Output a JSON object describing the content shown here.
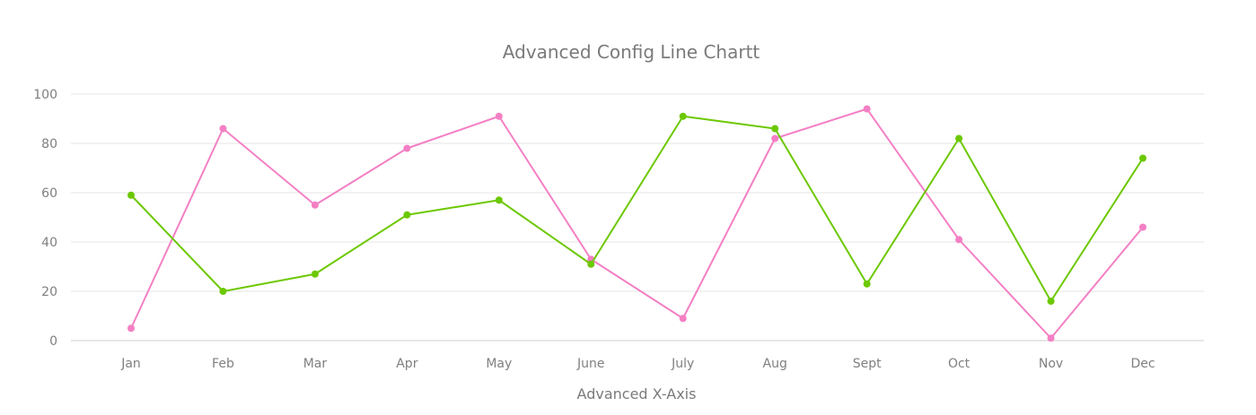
{
  "chart_data": {
    "type": "line",
    "title": "Advanced Config Line Chartt",
    "xlabel": "Advanced X-Axis",
    "ylabel": "",
    "categories": [
      "Jan",
      "Feb",
      "Mar",
      "Apr",
      "May",
      "June",
      "July",
      "Aug",
      "Sept",
      "Oct",
      "Nov",
      "Dec"
    ],
    "ylim": [
      0,
      100
    ],
    "yticks": [
      0,
      20,
      40,
      60,
      80,
      100
    ],
    "grid": true,
    "legend": false,
    "series": [
      {
        "color": "#f47fc4",
        "values": [
          5,
          86,
          55,
          78,
          91,
          33,
          9,
          82,
          94,
          41,
          1,
          46
        ]
      },
      {
        "color": "#6cc800",
        "values": [
          59,
          20,
          27,
          51,
          57,
          31,
          91,
          86,
          23,
          82,
          16,
          74
        ]
      }
    ]
  }
}
